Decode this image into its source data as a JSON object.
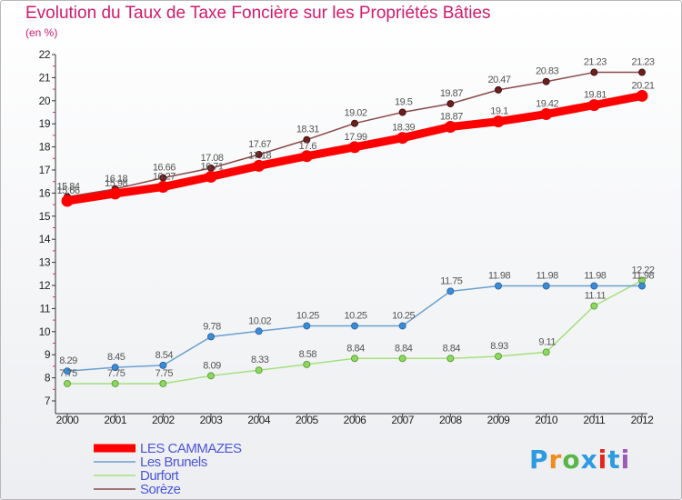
{
  "title": "Evolution du Taux de Taxe Foncière sur les Propriétés Bâties",
  "unit": "(en %)",
  "logo": {
    "text": "Proxiti",
    "colors": [
      "#2e9be0",
      "#f28c1c",
      "#58b547",
      "#2e9be0",
      "#e3251e",
      "#2e9be0",
      "#9c59b6"
    ]
  },
  "chart_data": {
    "type": "line",
    "title": "Evolution du Taux de Taxe Foncière sur les Propriétés Bâties",
    "ylabel": "(en %)",
    "xlabel": "",
    "categories": [
      "2000",
      "2001",
      "2002",
      "2003",
      "2004",
      "2005",
      "2006",
      "2007",
      "2008",
      "2009",
      "2010",
      "2011",
      "2012"
    ],
    "ylim": [
      7,
      22
    ],
    "yticks": [
      7,
      8,
      9,
      10,
      11,
      12,
      13,
      14,
      15,
      16,
      17,
      18,
      19,
      20,
      21,
      22
    ],
    "legend_position": "bottom-left",
    "series": [
      {
        "name": "LES CAMMAZES",
        "color": "#ff0000",
        "values": [
          15.66,
          15.98,
          16.27,
          16.71,
          17.18,
          17.6,
          17.99,
          18.39,
          18.87,
          19.1,
          19.42,
          19.81,
          20.21
        ]
      },
      {
        "name": "Les Brunels",
        "color": "#6a9fd0",
        "values": [
          8.29,
          8.45,
          8.54,
          9.78,
          10.02,
          10.25,
          10.25,
          10.25,
          11.75,
          11.98,
          11.98,
          11.98,
          11.98
        ]
      },
      {
        "name": "Durfort",
        "color": "#a6e07c",
        "values": [
          7.75,
          7.75,
          7.75,
          8.09,
          8.33,
          8.58,
          8.84,
          8.84,
          8.84,
          8.93,
          9.11,
          11.11,
          12.22
        ]
      },
      {
        "name": "Sorèze",
        "color": "#8a4a4a",
        "values": [
          15.84,
          16.18,
          16.66,
          17.08,
          17.67,
          18.31,
          19.02,
          19.5,
          19.87,
          20.47,
          20.83,
          21.23,
          21.23
        ]
      }
    ],
    "point_labels": [
      [
        "15.66",
        "15.98",
        "16.27",
        "16.71",
        "17.18",
        "17.6",
        "17.99",
        "18.39",
        "18.87",
        "19.1",
        "19.42",
        "19.81",
        "20.21"
      ],
      [
        "8.29",
        "8.45",
        "8.54",
        "9.78",
        "10.02",
        "10.25",
        "10.25",
        "10.25",
        "11.75",
        "11.98",
        "11.98",
        "11.98",
        "11.98"
      ],
      [
        "7.75",
        "7.75",
        "7.75",
        "8.09",
        "8.33",
        "8.58",
        "8.84",
        "8.84",
        "8.84",
        "8.93",
        "9.11",
        "11.11",
        "12.22"
      ],
      [
        "15.84",
        "16.18",
        "16.66",
        "17.08",
        "17.67",
        "18.31",
        "19.02",
        "19.5",
        "19.87",
        "20.47",
        "20.83",
        "21.23",
        "21.23"
      ]
    ]
  }
}
